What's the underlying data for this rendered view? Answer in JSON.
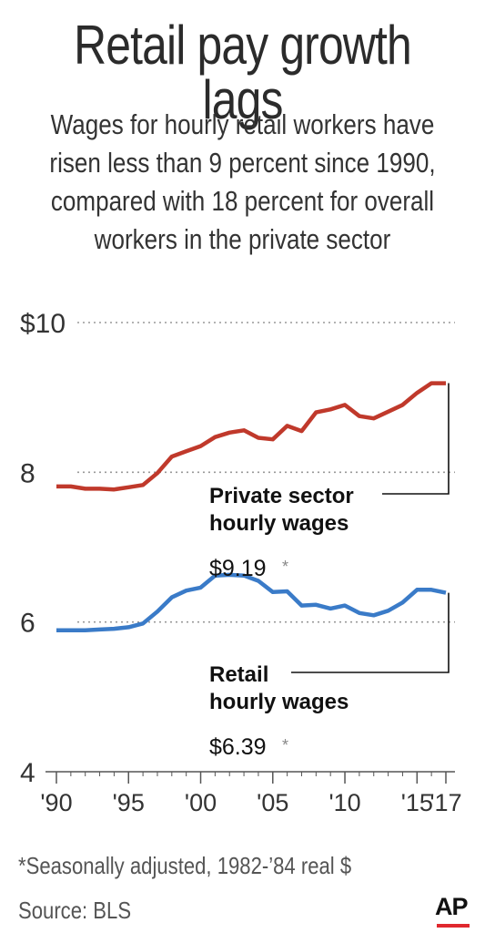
{
  "title": "Retail pay growth lags",
  "subtitle_lines": [
    "Wages for hourly retail workers have",
    "risen less than 9 percent since 1990,",
    "compared with 18  percent for overall",
    "workers in the private sector"
  ],
  "colors": {
    "private": "#c0392b",
    "retail": "#3a7bc8",
    "grid": "#999999"
  },
  "chart_data": {
    "type": "line",
    "x": [
      1990,
      1991,
      1992,
      1993,
      1994,
      1995,
      1996,
      1997,
      1998,
      1999,
      2000,
      2001,
      2002,
      2003,
      2004,
      2005,
      2006,
      2007,
      2008,
      2009,
      2010,
      2011,
      2012,
      2013,
      2014,
      2015,
      2016,
      2017
    ],
    "series": [
      {
        "name": "Private sector hourly wages",
        "values": [
          7.81,
          7.81,
          7.78,
          7.78,
          7.77,
          7.8,
          7.83,
          7.99,
          8.21,
          8.28,
          8.35,
          8.47,
          8.53,
          8.56,
          8.46,
          8.44,
          8.62,
          8.55,
          8.8,
          8.84,
          8.9,
          8.75,
          8.72,
          8.81,
          8.9,
          9.06,
          9.19,
          9.19
        ]
      },
      {
        "name": "Retail hourly wages",
        "values": [
          5.89,
          5.89,
          5.89,
          5.9,
          5.91,
          5.93,
          5.98,
          6.14,
          6.33,
          6.42,
          6.46,
          6.62,
          6.63,
          6.62,
          6.55,
          6.4,
          6.41,
          6.22,
          6.23,
          6.18,
          6.22,
          6.12,
          6.09,
          6.15,
          6.26,
          6.43,
          6.43,
          6.39
        ]
      }
    ],
    "ylim": [
      4,
      10
    ],
    "yticks": [
      4,
      6,
      8,
      10
    ],
    "ytick_labels": [
      "4",
      "6",
      "8",
      "$10"
    ],
    "xticks": [
      1990,
      1995,
      2000,
      2005,
      2010,
      2015,
      2017
    ],
    "xtick_labels": [
      "'90",
      "'95",
      "'00",
      "'05",
      "'10",
      "'15",
      "'17"
    ],
    "grid": true,
    "annotations": [
      {
        "series": "Private sector hourly wages",
        "label_lines": [
          "Private sector",
          "hourly wages"
        ],
        "value": "$9.19",
        "mark": "*"
      },
      {
        "series": "Retail hourly wages",
        "label_lines": [
          "Retail",
          "hourly wages"
        ],
        "value": "$6.39",
        "mark": "*"
      }
    ]
  },
  "footnote": "*Seasonally adjusted, 1982-’84 real $",
  "source": "Source: BLS",
  "logo_text": "AP"
}
